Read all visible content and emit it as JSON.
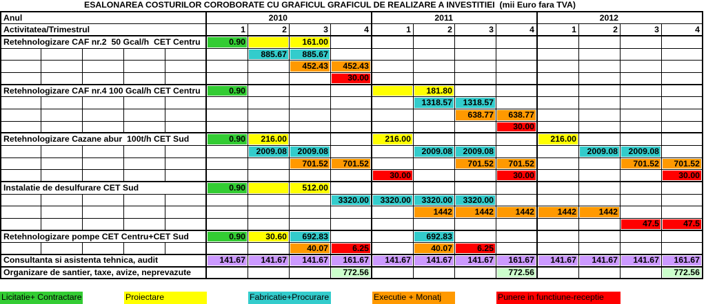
{
  "title": "ESALONAREA COSTURILOR COROBORATE CU GRAFICUL GRAFICUL DE REALIZARE A INVESTITIEI  (mii Euro fara TVA)",
  "header": {
    "year_label": "Anul",
    "activity_label": "Activitatea/Trimestrul",
    "years": [
      "2010",
      "2011",
      "2012"
    ],
    "quarters": [
      "1",
      "2",
      "3",
      "4"
    ]
  },
  "activities": [
    {
      "label": "Retehnologizare CAF nr.2  50 Gcal/h  CET Centru",
      "rows": [
        [
          {
            "fill": "#33cc33",
            "value": "0.90"
          },
          {
            "fill": "#ffff00",
            "value": ""
          },
          {
            "fill": "#ffff00",
            "value": "161.00"
          },
          null,
          null,
          null,
          null,
          null,
          null,
          null,
          null,
          null
        ],
        [
          null,
          {
            "fill": "#33cccc",
            "value": "885.67"
          },
          {
            "fill": "#33cccc",
            "value": "885.67"
          },
          null,
          null,
          null,
          null,
          null,
          null,
          null,
          null,
          null
        ],
        [
          null,
          null,
          {
            "fill": "#ff9900",
            "value": "452.43"
          },
          {
            "fill": "#ff9900",
            "value": "452.43"
          },
          null,
          null,
          null,
          null,
          null,
          null,
          null,
          null
        ],
        [
          null,
          null,
          null,
          {
            "fill": "#ff0000",
            "value": "30.00"
          },
          null,
          null,
          null,
          null,
          null,
          null,
          null,
          null
        ]
      ]
    },
    {
      "label": "Retehnologizare CAF nr.4 100 Gcal/h CET Centru",
      "rows": [
        [
          {
            "fill": "#33cc33",
            "value": "0.90"
          },
          null,
          null,
          null,
          {
            "fill": "#ffff00",
            "value": ""
          },
          {
            "fill": "#ffff00",
            "value": "181.80"
          },
          null,
          null,
          null,
          null,
          null,
          null
        ],
        [
          null,
          null,
          null,
          null,
          null,
          {
            "fill": "#33cccc",
            "value": "1318.57"
          },
          {
            "fill": "#33cccc",
            "value": "1318.57"
          },
          null,
          null,
          null,
          null,
          null
        ],
        [
          null,
          null,
          null,
          null,
          null,
          null,
          {
            "fill": "#ff9900",
            "value": "638.77"
          },
          {
            "fill": "#ff9900",
            "value": "638.77"
          },
          null,
          null,
          null,
          null
        ],
        [
          null,
          null,
          null,
          null,
          null,
          null,
          null,
          {
            "fill": "#ff0000",
            "value": "30.00"
          },
          null,
          null,
          null,
          null
        ]
      ]
    },
    {
      "label": "Retehnologizare Cazane abur  100t/h CET Sud",
      "rows": [
        [
          {
            "fill": "#33cc33",
            "value": "0.90"
          },
          {
            "fill": "#ffff00",
            "value": "216.00"
          },
          null,
          null,
          {
            "fill": "#ffff00",
            "value": "216.00"
          },
          null,
          null,
          null,
          {
            "fill": "#ffff00",
            "value": "216.00"
          },
          null,
          null,
          null
        ],
        [
          null,
          {
            "fill": "#33cccc",
            "value": "2009.08"
          },
          {
            "fill": "#33cccc",
            "value": "2009.08"
          },
          null,
          null,
          {
            "fill": "#33cccc",
            "value": "2009.08"
          },
          {
            "fill": "#33cccc",
            "value": "2009.08"
          },
          null,
          null,
          {
            "fill": "#33cccc",
            "value": "2009.08"
          },
          {
            "fill": "#33cccc",
            "value": "2009.08"
          },
          null
        ],
        [
          null,
          null,
          {
            "fill": "#ff9900",
            "value": "701.52"
          },
          {
            "fill": "#ff9900",
            "value": "701.52"
          },
          null,
          null,
          {
            "fill": "#ff9900",
            "value": "701.52"
          },
          {
            "fill": "#ff9900",
            "value": "701.52"
          },
          null,
          null,
          {
            "fill": "#ff9900",
            "value": "701.52"
          },
          {
            "fill": "#ff9900",
            "value": "701.52"
          }
        ],
        [
          null,
          null,
          null,
          null,
          {
            "fill": "#ff0000",
            "value": "30.00"
          },
          null,
          null,
          {
            "fill": "#ff0000",
            "value": "30.00"
          },
          null,
          null,
          null,
          {
            "fill": "#ff0000",
            "value": "30.00"
          }
        ]
      ]
    },
    {
      "label": "Instalatie de desulfurare CET Sud",
      "rows": [
        [
          {
            "fill": "#33cc33",
            "value": "0.90"
          },
          {
            "fill": "#ffff00",
            "value": ""
          },
          {
            "fill": "#ffff00",
            "value": "512.00"
          },
          null,
          null,
          null,
          null,
          null,
          null,
          null,
          null,
          null
        ],
        [
          null,
          null,
          null,
          {
            "fill": "#33cccc",
            "value": "3320.00"
          },
          {
            "fill": "#33cccc",
            "value": "3320.00"
          },
          {
            "fill": "#33cccc",
            "value": "3320.00"
          },
          {
            "fill": "#33cccc",
            "value": "3320.00"
          },
          null,
          null,
          null,
          null,
          null
        ],
        [
          null,
          null,
          null,
          null,
          null,
          {
            "fill": "#ff9900",
            "value": "1442"
          },
          {
            "fill": "#ff9900",
            "value": "1442"
          },
          {
            "fill": "#ff9900",
            "value": "1442"
          },
          {
            "fill": "#ff9900",
            "value": "1442"
          },
          {
            "fill": "#ff9900",
            "value": "1442"
          },
          null,
          null
        ],
        [
          null,
          null,
          null,
          null,
          null,
          null,
          null,
          null,
          null,
          null,
          {
            "fill": "#ff0000",
            "value": "47.5"
          },
          {
            "fill": "#ff0000",
            "value": "47.5"
          }
        ]
      ]
    },
    {
      "label": "Retehnologizare pompe CET Centru+CET Sud",
      "rows": [
        [
          {
            "fill": "#33cc33",
            "value": "0.90"
          },
          {
            "fill": "#ffff00",
            "value": "30.60"
          },
          {
            "fill": "#33cccc",
            "value": "692.83"
          },
          null,
          null,
          {
            "fill": "#33cccc",
            "value": "692.83"
          },
          null,
          null,
          null,
          null,
          null,
          null
        ],
        [
          null,
          null,
          {
            "fill": "#ff9900",
            "value": "40.07"
          },
          {
            "fill": "#ff0000",
            "value": "6.25"
          },
          null,
          {
            "fill": "#ff9900",
            "value": "40.07"
          },
          {
            "fill": "#ff0000",
            "value": "6.25"
          },
          null,
          null,
          null,
          null,
          null
        ]
      ]
    },
    {
      "label": "Consultanta si asistenta tehnica, audit",
      "rows": [
        [
          {
            "fill": "#cc99ff",
            "value": "141.67"
          },
          {
            "fill": "#cc99ff",
            "value": "141.67"
          },
          {
            "fill": "#cc99ff",
            "value": "141.67"
          },
          {
            "fill": "#cc99ff",
            "value": "161.67"
          },
          {
            "fill": "#cc99ff",
            "value": "141.67"
          },
          {
            "fill": "#cc99ff",
            "value": "141.67"
          },
          {
            "fill": "#cc99ff",
            "value": "141.67"
          },
          {
            "fill": "#cc99ff",
            "value": "161.67"
          },
          {
            "fill": "#cc99ff",
            "value": "141.67"
          },
          {
            "fill": "#cc99ff",
            "value": "141.67"
          },
          {
            "fill": "#cc99ff",
            "value": "141.67"
          },
          {
            "fill": "#cc99ff",
            "value": "161.67"
          }
        ]
      ]
    },
    {
      "label": "Organizare de santier, taxe, avize, neprevazute",
      "rows": [
        [
          null,
          null,
          null,
          {
            "fill": "#ccffcc",
            "value": "772.56"
          },
          null,
          null,
          null,
          {
            "fill": "#ccffcc",
            "value": "772.56"
          },
          null,
          null,
          null,
          {
            "fill": "#ccffcc",
            "value": "772.56"
          }
        ]
      ]
    }
  ],
  "legend": [
    {
      "label": "Licitatie+ Contractare",
      "fill": "#33cc33"
    },
    {
      "label": "Proiectare",
      "fill": "#ffff00"
    },
    {
      "label": "Fabricatie+Procurare",
      "fill": "#33cccc"
    },
    {
      "label": "Executie + Monatj",
      "fill": "#ff9900"
    },
    {
      "label": "Punere in functiune-receptie",
      "fill": "#ff0000"
    }
  ]
}
